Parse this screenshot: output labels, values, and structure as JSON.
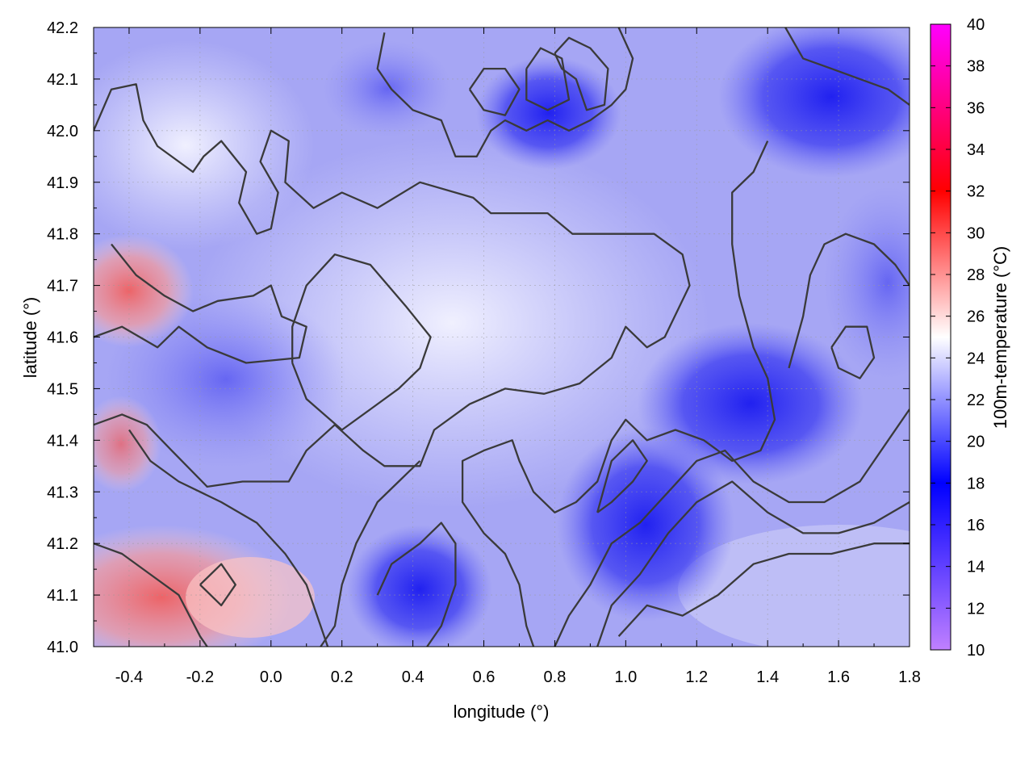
{
  "chart_data": {
    "type": "heatmap",
    "title": "",
    "xlabel": "longitude (°)",
    "ylabel": "latitude (°)",
    "colorbar_label": "100m-temperature (°C)",
    "xlim": [
      -0.5,
      1.8
    ],
    "ylim": [
      41.0,
      42.2
    ],
    "x_ticks": [
      -0.4,
      -0.2,
      0.0,
      0.2,
      0.4,
      0.6,
      0.8,
      1.0,
      1.2,
      1.4,
      1.6,
      1.8
    ],
    "x_tick_labels": [
      "-0.4",
      "-0.2",
      "0.0",
      "0.2",
      "0.4",
      "0.6",
      "0.8",
      "1.0",
      "1.2",
      "1.4",
      "1.6",
      "1.8"
    ],
    "y_ticks": [
      41.0,
      41.1,
      41.2,
      41.3,
      41.4,
      41.5,
      41.6,
      41.7,
      41.8,
      41.9,
      42.0,
      42.1,
      42.2
    ],
    "y_tick_labels": [
      "41.0",
      "41.1",
      "41.2",
      "41.3",
      "41.4",
      "41.5",
      "41.6",
      "41.7",
      "41.8",
      "41.9",
      "42.0",
      "42.1",
      "42.2"
    ],
    "colorbar_range": [
      10,
      40
    ],
    "colorbar_ticks": [
      10,
      12,
      14,
      16,
      18,
      20,
      22,
      24,
      26,
      28,
      30,
      32,
      34,
      36,
      38,
      40
    ],
    "colorbar_tick_labels": [
      "10",
      "12",
      "14",
      "16",
      "18",
      "20",
      "22",
      "24",
      "26",
      "28",
      "30",
      "32",
      "34",
      "36",
      "38",
      "40"
    ],
    "colormap": [
      {
        "value": 10,
        "color": "#c080ff"
      },
      {
        "value": 18,
        "color": "#0000ff"
      },
      {
        "value": 25,
        "color": "#ffffff"
      },
      {
        "value": 32,
        "color": "#ff0000"
      },
      {
        "value": 40,
        "color": "#ff00ff"
      }
    ],
    "grid": true,
    "contours": [
      [
        [
          -0.5,
          42.0
        ],
        [
          -0.45,
          42.08
        ],
        [
          -0.38,
          42.09
        ],
        [
          -0.36,
          42.02
        ],
        [
          -0.32,
          41.97
        ],
        [
          -0.22,
          41.92
        ],
        [
          -0.19,
          41.95
        ],
        [
          -0.14,
          41.98
        ],
        [
          -0.07,
          41.92
        ],
        [
          -0.09,
          41.86
        ],
        [
          -0.04,
          41.8
        ],
        [
          0.0,
          41.81
        ],
        [
          0.02,
          41.88
        ],
        [
          -0.03,
          41.94
        ],
        [
          0.0,
          42.0
        ],
        [
          0.05,
          41.98
        ],
        [
          0.04,
          41.9
        ],
        [
          0.12,
          41.85
        ],
        [
          0.2,
          41.88
        ],
        [
          0.3,
          41.85
        ],
        [
          0.42,
          41.9
        ],
        [
          0.57,
          41.87
        ],
        [
          0.62,
          41.84
        ],
        [
          0.78,
          41.84
        ],
        [
          0.85,
          41.8
        ],
        [
          1.08,
          41.8
        ],
        [
          1.16,
          41.76
        ],
        [
          1.18,
          41.7
        ],
        [
          1.11,
          41.6
        ],
        [
          1.06,
          41.58
        ],
        [
          1.0,
          41.62
        ],
        [
          0.96,
          41.56
        ],
        [
          0.87,
          41.51
        ],
        [
          0.77,
          41.49
        ],
        [
          0.66,
          41.5
        ],
        [
          0.56,
          41.47
        ],
        [
          0.46,
          41.42
        ],
        [
          0.42,
          41.35
        ],
        [
          0.32,
          41.35
        ],
        [
          0.26,
          41.38
        ],
        [
          0.18,
          41.43
        ],
        [
          0.1,
          41.38
        ],
        [
          0.05,
          41.32
        ],
        [
          -0.08,
          41.32
        ],
        [
          -0.18,
          41.31
        ],
        [
          -0.28,
          41.38
        ],
        [
          -0.35,
          41.43
        ],
        [
          -0.42,
          41.45
        ],
        [
          -0.5,
          41.43
        ]
      ],
      [
        [
          -0.45,
          41.78
        ],
        [
          -0.38,
          41.72
        ],
        [
          -0.3,
          41.68
        ],
        [
          -0.22,
          41.65
        ],
        [
          -0.15,
          41.67
        ],
        [
          -0.05,
          41.68
        ],
        [
          0.0,
          41.7
        ],
        [
          0.03,
          41.64
        ],
        [
          0.1,
          41.62
        ],
        [
          0.08,
          41.56
        ],
        [
          -0.07,
          41.55
        ],
        [
          -0.18,
          41.58
        ],
        [
          -0.26,
          41.62
        ],
        [
          -0.32,
          41.58
        ],
        [
          -0.42,
          41.62
        ],
        [
          -0.5,
          41.6
        ]
      ],
      [
        [
          0.06,
          41.55
        ],
        [
          0.1,
          41.48
        ],
        [
          0.2,
          41.42
        ],
        [
          0.28,
          41.46
        ],
        [
          0.36,
          41.5
        ],
        [
          0.42,
          41.54
        ],
        [
          0.45,
          41.6
        ],
        [
          0.38,
          41.66
        ],
        [
          0.28,
          41.74
        ],
        [
          0.18,
          41.76
        ],
        [
          0.1,
          41.7
        ],
        [
          0.06,
          41.62
        ],
        [
          0.06,
          41.55
        ]
      ],
      [
        [
          0.32,
          42.19
        ],
        [
          0.3,
          42.12
        ],
        [
          0.34,
          42.08
        ],
        [
          0.4,
          42.04
        ],
        [
          0.48,
          42.02
        ],
        [
          0.52,
          41.95
        ],
        [
          0.58,
          41.95
        ],
        [
          0.62,
          42.0
        ],
        [
          0.66,
          42.02
        ],
        [
          0.72,
          42.0
        ],
        [
          0.78,
          42.02
        ],
        [
          0.84,
          42.0
        ],
        [
          0.9,
          42.02
        ],
        [
          0.96,
          42.05
        ],
        [
          1.0,
          42.08
        ],
        [
          1.02,
          42.14
        ],
        [
          0.98,
          42.2
        ]
      ],
      [
        [
          0.72,
          42.12
        ],
        [
          0.76,
          42.16
        ],
        [
          0.82,
          42.14
        ],
        [
          0.84,
          42.06
        ],
        [
          0.78,
          42.04
        ],
        [
          0.72,
          42.06
        ],
        [
          0.72,
          42.12
        ]
      ],
      [
        [
          0.56,
          42.08
        ],
        [
          0.6,
          42.04
        ],
        [
          0.66,
          42.03
        ],
        [
          0.7,
          42.08
        ],
        [
          0.66,
          42.12
        ],
        [
          0.6,
          42.12
        ],
        [
          0.56,
          42.08
        ]
      ],
      [
        [
          0.8,
          42.15
        ],
        [
          0.82,
          42.12
        ],
        [
          0.86,
          42.1
        ],
        [
          0.89,
          42.04
        ],
        [
          0.94,
          42.05
        ],
        [
          0.95,
          42.12
        ],
        [
          0.9,
          42.16
        ],
        [
          0.84,
          42.18
        ],
        [
          0.8,
          42.15
        ]
      ],
      [
        [
          1.45,
          42.2
        ],
        [
          1.5,
          42.14
        ],
        [
          1.58,
          42.12
        ],
        [
          1.66,
          42.1
        ],
        [
          1.74,
          42.08
        ],
        [
          1.8,
          42.05
        ]
      ],
      [
        [
          1.4,
          41.98
        ],
        [
          1.36,
          41.92
        ],
        [
          1.3,
          41.88
        ],
        [
          1.3,
          41.78
        ],
        [
          1.32,
          41.68
        ],
        [
          1.36,
          41.58
        ],
        [
          1.4,
          41.52
        ],
        [
          1.42,
          41.44
        ],
        [
          1.38,
          41.38
        ],
        [
          1.3,
          41.36
        ],
        [
          1.22,
          41.4
        ],
        [
          1.14,
          41.42
        ],
        [
          1.06,
          41.4
        ],
        [
          1.0,
          41.44
        ],
        [
          0.96,
          41.4
        ],
        [
          0.92,
          41.32
        ],
        [
          0.86,
          41.28
        ],
        [
          0.8,
          41.26
        ],
        [
          0.74,
          41.3
        ],
        [
          0.7,
          41.36
        ],
        [
          0.68,
          41.4
        ],
        [
          0.6,
          41.38
        ],
        [
          0.54,
          41.36
        ],
        [
          0.54,
          41.28
        ],
        [
          0.6,
          41.22
        ],
        [
          0.66,
          41.18
        ],
        [
          0.7,
          41.12
        ],
        [
          0.72,
          41.04
        ],
        [
          0.74,
          41.0
        ]
      ],
      [
        [
          0.8,
          41.0
        ],
        [
          0.84,
          41.06
        ],
        [
          0.9,
          41.12
        ],
        [
          0.96,
          41.2
        ],
        [
          1.04,
          41.24
        ],
        [
          1.12,
          41.3
        ],
        [
          1.2,
          41.36
        ],
        [
          1.28,
          41.38
        ],
        [
          1.36,
          41.32
        ],
        [
          1.46,
          41.28
        ],
        [
          1.56,
          41.28
        ],
        [
          1.66,
          41.32
        ],
        [
          1.74,
          41.4
        ],
        [
          1.8,
          41.46
        ]
      ],
      [
        [
          0.92,
          41.0
        ],
        [
          0.96,
          41.08
        ],
        [
          1.04,
          41.14
        ],
        [
          1.12,
          41.22
        ],
        [
          1.2,
          41.28
        ],
        [
          1.3,
          41.32
        ],
        [
          1.4,
          41.26
        ],
        [
          1.5,
          41.22
        ],
        [
          1.6,
          41.22
        ],
        [
          1.7,
          41.24
        ],
        [
          1.8,
          41.28
        ]
      ],
      [
        [
          0.98,
          41.02
        ],
        [
          1.06,
          41.08
        ],
        [
          1.16,
          41.06
        ],
        [
          1.26,
          41.1
        ],
        [
          1.36,
          41.16
        ],
        [
          1.46,
          41.18
        ],
        [
          1.58,
          41.18
        ],
        [
          1.7,
          41.2
        ],
        [
          1.8,
          41.2
        ]
      ],
      [
        [
          0.92,
          41.26
        ],
        [
          0.96,
          41.28
        ],
        [
          1.02,
          41.32
        ],
        [
          1.06,
          41.36
        ],
        [
          1.02,
          41.4
        ],
        [
          0.96,
          41.36
        ],
        [
          0.92,
          41.26
        ]
      ],
      [
        [
          1.46,
          41.54
        ],
        [
          1.5,
          41.64
        ],
        [
          1.52,
          41.72
        ],
        [
          1.56,
          41.78
        ],
        [
          1.62,
          41.8
        ],
        [
          1.7,
          41.78
        ],
        [
          1.76,
          41.74
        ],
        [
          1.8,
          41.7
        ]
      ],
      [
        [
          1.58,
          41.58
        ],
        [
          1.62,
          41.62
        ],
        [
          1.68,
          41.62
        ],
        [
          1.7,
          41.56
        ],
        [
          1.66,
          41.52
        ],
        [
          1.6,
          41.54
        ],
        [
          1.58,
          41.58
        ]
      ],
      [
        [
          0.3,
          41.1
        ],
        [
          0.34,
          41.16
        ],
        [
          0.42,
          41.2
        ],
        [
          0.48,
          41.24
        ],
        [
          0.52,
          41.2
        ],
        [
          0.52,
          41.12
        ],
        [
          0.48,
          41.04
        ],
        [
          0.44,
          41.0
        ]
      ],
      [
        [
          0.14,
          41.0
        ],
        [
          0.18,
          41.04
        ],
        [
          0.2,
          41.12
        ],
        [
          0.24,
          41.2
        ],
        [
          0.3,
          41.28
        ],
        [
          0.36,
          41.32
        ],
        [
          0.42,
          41.36
        ]
      ],
      [
        [
          -0.2,
          41.12
        ],
        [
          -0.14,
          41.16
        ],
        [
          -0.1,
          41.12
        ],
        [
          -0.14,
          41.08
        ],
        [
          -0.2,
          41.12
        ]
      ],
      [
        [
          -0.5,
          41.2
        ],
        [
          -0.42,
          41.18
        ],
        [
          -0.34,
          41.14
        ],
        [
          -0.26,
          41.1
        ],
        [
          -0.2,
          41.02
        ],
        [
          -0.18,
          41.0
        ]
      ],
      [
        [
          -0.4,
          41.42
        ],
        [
          -0.34,
          41.36
        ],
        [
          -0.26,
          41.32
        ],
        [
          -0.14,
          41.28
        ],
        [
          -0.04,
          41.24
        ],
        [
          0.04,
          41.18
        ],
        [
          0.1,
          41.12
        ],
        [
          0.14,
          41.04
        ],
        [
          0.16,
          41.0
        ]
      ]
    ]
  }
}
